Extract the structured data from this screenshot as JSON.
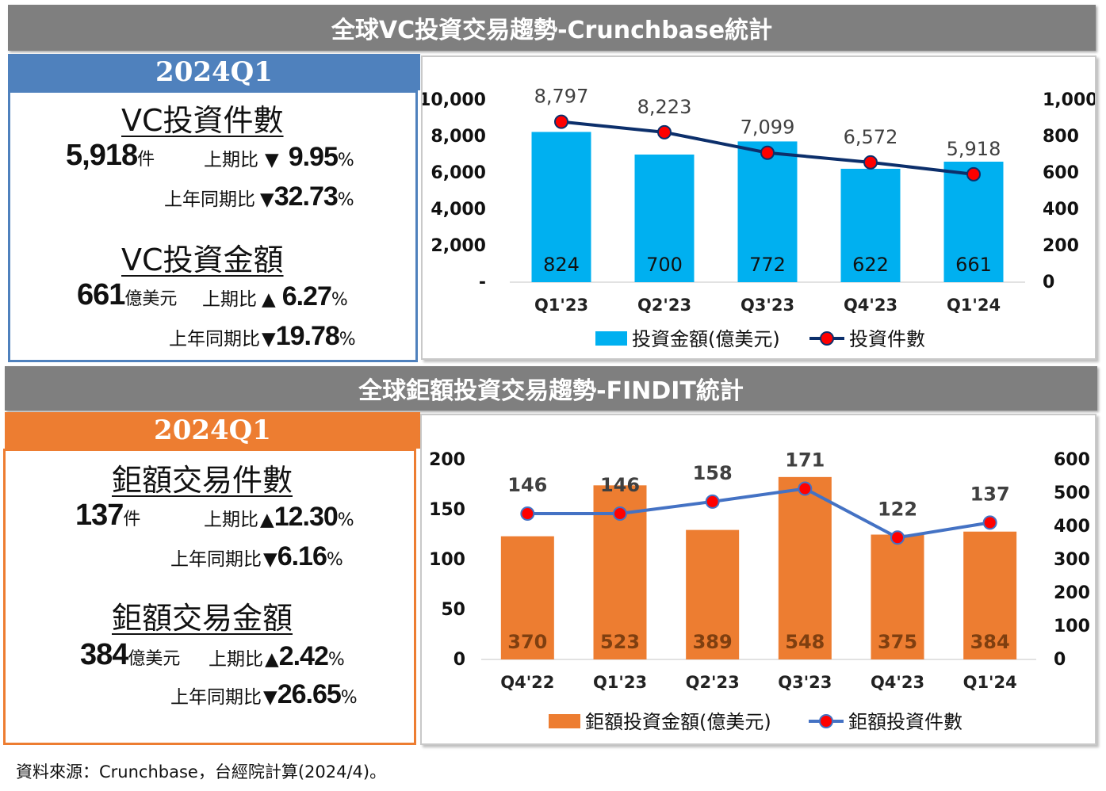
{
  "top": {
    "banner": "全球VC投資交易趨勢-Crunchbase統計",
    "period": "2024Q1",
    "count": {
      "title": "VC投資件數",
      "value": "5,918",
      "unit": "件",
      "qoq_label": "上期比",
      "qoq_arrow": "▼",
      "qoq_value": "9.95",
      "qoq_pct": "%",
      "yoy_label": "上年同期比",
      "yoy_arrow": "▼",
      "yoy_value": "32.73",
      "yoy_pct": "%"
    },
    "amount": {
      "title": "VC投資金額",
      "value": "661",
      "unit": "億美元",
      "qoq_label": "上期比",
      "qoq_arrow": "▲",
      "qoq_value": "6.27",
      "qoq_pct": "%",
      "yoy_label": "上年同期比",
      "yoy_arrow": "▼",
      "yoy_value": "19.78",
      "yoy_pct": "%"
    }
  },
  "bottom": {
    "banner": "全球鉅額投資交易趨勢-FINDIT統計",
    "period": "2024Q1",
    "count": {
      "title": "鉅額交易件數",
      "value": "137",
      "unit": "件",
      "qoq_label": "上期比",
      "qoq_arrow": "▲",
      "qoq_value": "12.30",
      "qoq_pct": "%",
      "yoy_label": "上年同期比",
      "yoy_arrow": "▼",
      "yoy_value": "6.16",
      "yoy_pct": "%"
    },
    "amount": {
      "title": "鉅額交易金額",
      "value": "384",
      "unit": "億美元",
      "qoq_label": "上期比",
      "qoq_arrow": "▲",
      "qoq_value": "2.42",
      "qoq_pct": "%",
      "yoy_label": "上年同期比",
      "yoy_arrow": "▼",
      "yoy_value": "26.65",
      "yoy_pct": "%"
    }
  },
  "source": "資料來源：Crunchbase，台經院計算(2024/4)。",
  "colors": {
    "banner_gray": "#7f7f7f",
    "blue_header": "#4f81bd",
    "orange_header": "#ed7d31",
    "vc_bar": "#00b0f0",
    "vc_line": "#0c2f6b",
    "mega_bar": "#ed7d31",
    "mega_line": "#4472c4",
    "marker": "#ff0000"
  },
  "chart_data": [
    {
      "type": "bar",
      "combo": "bar+line (dual axis)",
      "categories": [
        "Q1'23",
        "Q2'23",
        "Q3'23",
        "Q4'23",
        "Q1'24"
      ],
      "series": [
        {
          "name": "投資金額(億美元)",
          "type": "bar",
          "axis": "right",
          "values": [
            824,
            700,
            772,
            622,
            661
          ]
        },
        {
          "name": "投資件數",
          "type": "line",
          "axis": "left",
          "values": [
            8797,
            8223,
            7099,
            6572,
            5918
          ]
        }
      ],
      "bar_labels": [
        "824",
        "700",
        "772",
        "622",
        "661"
      ],
      "line_labels": [
        "8,797",
        "8,223",
        "7,099",
        "6,572",
        "5,918"
      ],
      "left_axis": {
        "ylim": [
          0,
          10000
        ],
        "ticks": [
          "-",
          "2,000",
          "4,000",
          "6,000",
          "8,000",
          "10,000"
        ]
      },
      "right_axis": {
        "ylim": [
          0,
          1000
        ],
        "ticks": [
          "0",
          "200",
          "400",
          "600",
          "800",
          "1,000"
        ]
      },
      "legend": "bottom",
      "grid": false
    },
    {
      "type": "bar",
      "combo": "bar+line (dual axis)",
      "categories": [
        "Q4'22",
        "Q1'23",
        "Q2'23",
        "Q3'23",
        "Q4'23",
        "Q1'24"
      ],
      "series": [
        {
          "name": "鉅額投資金額(億美元)",
          "type": "bar",
          "axis": "right",
          "values": [
            370,
            523,
            389,
            548,
            375,
            384
          ]
        },
        {
          "name": "鉅額投資件數",
          "type": "line",
          "axis": "left",
          "values": [
            146,
            146,
            158,
            171,
            122,
            137
          ]
        }
      ],
      "bar_labels": [
        "370",
        "523",
        "389",
        "548",
        "375",
        "384"
      ],
      "line_labels": [
        "146",
        "146",
        "158",
        "171",
        "122",
        "137"
      ],
      "left_axis": {
        "ylim": [
          0,
          200
        ],
        "ticks": [
          "0",
          "50",
          "100",
          "150",
          "200"
        ]
      },
      "right_axis": {
        "ylim": [
          0,
          600
        ],
        "ticks": [
          "0",
          "100",
          "200",
          "300",
          "400",
          "500",
          "600"
        ]
      },
      "legend": "bottom",
      "grid": false
    }
  ]
}
